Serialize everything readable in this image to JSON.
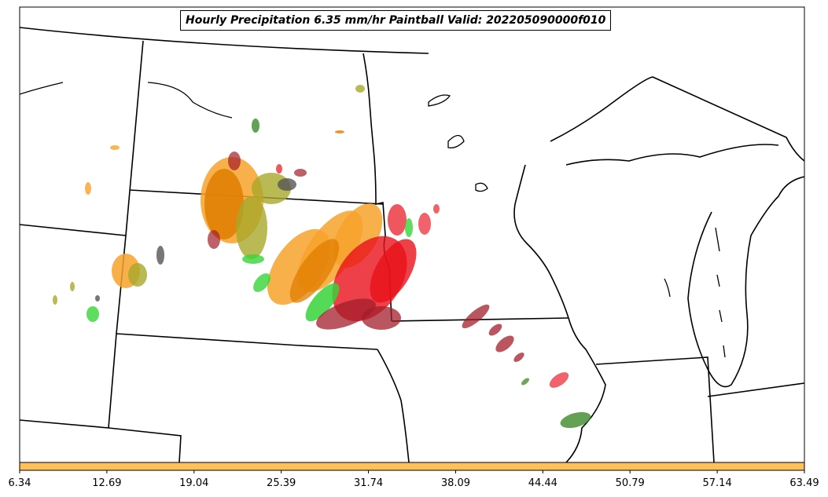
{
  "title": "Hourly Precipitation 6.35 mm/hr Paintball Valid: 202205090000f010",
  "colorbar": {
    "color": "#ffc15a",
    "ticks": [
      "6.34",
      "12.69",
      "19.04",
      "25.39",
      "31.74",
      "38.09",
      "44.44",
      "50.79",
      "57.14",
      "63.49"
    ]
  },
  "colors": {
    "orange": "#f7a22b",
    "dark_orange": "#e07e00",
    "red": "#e8101a",
    "dark_red": "#a31d2b",
    "olive": "#a8a82a",
    "green": "#36d43a",
    "dark_green": "#3c8a2a",
    "gray": "#555555",
    "boundary": "#000000"
  }
}
